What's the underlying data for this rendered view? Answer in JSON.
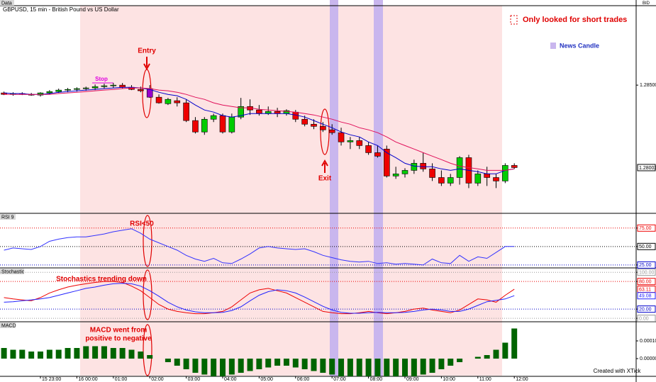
{
  "chart_data": [
    {
      "type": "candlestick",
      "title": "GBPUSD, 15 min - British Pound vs US Dollar",
      "panel_label": "Data",
      "axis_label": "BID",
      "categories": [
        null,
        null,
        null,
        null,
        "15 23:00",
        null,
        null,
        null,
        "16 00:00",
        null,
        null,
        null,
        "01:00",
        null,
        null,
        null,
        "02:00",
        null,
        null,
        null,
        "03:00",
        null,
        null,
        null,
        "04:00",
        null,
        null,
        null,
        "05:00",
        null,
        null,
        null,
        "06:00",
        null,
        null,
        null,
        "07:00",
        null,
        null,
        null,
        "08:00",
        null,
        null,
        null,
        "09:00",
        null,
        null,
        null,
        "10:00",
        null,
        null,
        null,
        "11:00",
        null,
        null,
        null,
        "12:00"
      ],
      "open": [
        1.28453,
        1.28444,
        1.28449,
        1.28444,
        1.2844,
        1.28453,
        1.28461,
        1.2847,
        1.28474,
        1.28479,
        1.28483,
        1.28491,
        1.28496,
        1.285,
        1.28487,
        1.28474,
        1.28479,
        1.28427,
        1.28388,
        1.28406,
        1.28393,
        1.28286,
        1.28217,
        1.28294,
        1.28316,
        1.28217,
        1.28307,
        1.28371,
        1.2835,
        1.28328,
        1.28341,
        1.28328,
        1.28337,
        1.28294,
        1.28264,
        1.28251,
        1.2823,
        1.28213,
        1.28157,
        1.28165,
        1.28135,
        1.28092,
        1.28114,
        1.27951,
        1.27964,
        1.27985,
        1.28028,
        1.27994,
        1.27942,
        1.27908,
        1.27942,
        1.28062,
        1.27908,
        1.27964,
        1.27942,
        1.27921,
        1.28015
      ],
      "high": [
        1.28461,
        1.28457,
        1.28457,
        1.28453,
        1.28457,
        1.2847,
        1.28479,
        1.28483,
        1.28487,
        1.28491,
        1.28504,
        1.28509,
        1.28513,
        1.28513,
        1.285,
        1.28491,
        1.285,
        1.28444,
        1.28423,
        1.28427,
        1.28414,
        1.28307,
        1.28307,
        1.28328,
        1.28328,
        1.28328,
        1.28423,
        1.28414,
        1.2838,
        1.28371,
        1.28363,
        1.28354,
        1.2835,
        1.28316,
        1.28294,
        1.28277,
        1.28264,
        1.28243,
        1.28187,
        1.28187,
        1.28157,
        1.28135,
        1.28135,
        1.28007,
        1.27998,
        1.2805,
        1.28092,
        1.28028,
        1.27985,
        1.27964,
        1.28071,
        1.28079,
        1.27985,
        1.28007,
        1.27964,
        1.28028,
        1.28028
      ],
      "low": [
        1.2844,
        1.28436,
        1.2844,
        1.28436,
        1.28431,
        1.28444,
        1.28453,
        1.28457,
        1.28461,
        1.28466,
        1.2847,
        1.28479,
        1.28483,
        1.28479,
        1.2847,
        1.28457,
        1.28423,
        1.28388,
        1.2838,
        1.28371,
        1.28277,
        1.28208,
        1.282,
        1.28277,
        1.28208,
        1.28208,
        1.28294,
        1.2832,
        1.28316,
        1.2832,
        1.28307,
        1.28316,
        1.28277,
        1.28251,
        1.28234,
        1.28217,
        1.282,
        1.28135,
        1.28114,
        1.28114,
        1.28079,
        1.28062,
        1.27942,
        1.27934,
        1.27942,
        1.27964,
        1.27977,
        1.27921,
        1.27891,
        1.27891,
        1.27899,
        1.27878,
        1.27891,
        1.27891,
        1.27878,
        1.27908,
        1.27994
      ],
      "close": [
        1.28444,
        1.28449,
        1.28444,
        1.2844,
        1.28453,
        1.28461,
        1.2847,
        1.28474,
        1.28479,
        1.28483,
        1.28491,
        1.28496,
        1.285,
        1.28487,
        1.28474,
        1.28466,
        1.28427,
        1.28393,
        1.28414,
        1.28393,
        1.28286,
        1.28217,
        1.28294,
        1.28316,
        1.28217,
        1.28307,
        1.28371,
        1.2835,
        1.28328,
        1.28341,
        1.28328,
        1.28346,
        1.28294,
        1.28264,
        1.28251,
        1.2823,
        1.28213,
        1.28157,
        1.28165,
        1.28135,
        1.28092,
        1.28071,
        1.27951,
        1.27964,
        1.27985,
        1.28028,
        1.27994,
        1.27942,
        1.27908,
        1.27942,
        1.28062,
        1.27908,
        1.27964,
        1.27942,
        1.27921,
        1.28015,
        1.28002
      ],
      "colors": [
        "#ee0000",
        "#00cc00",
        "#ee0000",
        "#ee0000",
        "#00cc00",
        "#00cc00",
        "#00cc00",
        "#00cc00",
        "#00cc00",
        "#00cc00",
        "#00cc00",
        "#00cc00",
        "#00cc00",
        "#ee0000",
        "#ee0000",
        "#ee0000",
        "#9900cc",
        "#ee0000",
        "#00cc00",
        "#ee0000",
        "#ee0000",
        "#ee0000",
        "#00cc00",
        "#00cc00",
        "#ee0000",
        "#00cc00",
        "#00cc00",
        "#ee0000",
        "#ee0000",
        "#00cc00",
        "#ee0000",
        "#00cc00",
        "#ee0000",
        "#ee0000",
        "#ee0000",
        "#ee0000",
        "#ee0000",
        "#ee0000",
        "#00cc00",
        "#ee0000",
        "#ee0000",
        "#ee0000",
        "#ee0000",
        "#00cc00",
        "#00cc00",
        "#00cc00",
        "#ee0000",
        "#ee0000",
        "#ee0000",
        "#00cc00",
        "#00cc00",
        "#ee0000",
        "#00cc00",
        "#ee0000",
        "#ee0000",
        "#00cc00",
        "#ee0000"
      ],
      "lines": [
        {
          "color": "#0000cc",
          "values": [
            1.28453,
            1.28449,
            1.28449,
            1.28444,
            1.28444,
            1.28449,
            1.28457,
            1.28461,
            1.28466,
            1.2847,
            1.28474,
            1.28479,
            1.28483,
            1.28487,
            1.28487,
            1.28483,
            1.28474,
            1.28457,
            1.28444,
            1.28436,
            1.28414,
            1.2838,
            1.2835,
            1.28337,
            1.28316,
            1.28307,
            1.28316,
            1.28328,
            1.28328,
            1.28328,
            1.28328,
            1.28328,
            1.2832,
            1.28307,
            1.28286,
            1.28264,
            1.28243,
            1.28217,
            1.282,
            1.28187,
            1.28157,
            1.28135,
            1.28092,
            1.28062,
            1.28028,
            1.28011,
            1.28007,
            1.28007,
            1.27994,
            1.27985,
            1.27994,
            1.27985,
            1.27977,
            1.27964,
            1.27964,
            1.27985,
            1.27994
          ]
        },
        {
          "color": "#e0105a",
          "values": [
            1.28444,
            1.28444,
            1.28444,
            1.28444,
            1.28444,
            1.28444,
            1.28449,
            1.28453,
            1.28457,
            1.28461,
            1.28466,
            1.2847,
            1.28474,
            1.28479,
            1.28483,
            1.28483,
            1.28479,
            1.2847,
            1.28466,
            1.28457,
            1.28444,
            1.28427,
            1.28414,
            1.28393,
            1.2838,
            1.28371,
            1.28363,
            1.28363,
            1.28354,
            1.2835,
            1.28346,
            1.28341,
            1.28337,
            1.28328,
            1.2832,
            1.28307,
            1.28294,
            1.28277,
            1.28264,
            1.28243,
            1.2823,
            1.28213,
            1.28187,
            1.28157,
            1.28135,
            1.28114,
            1.28092,
            1.28071,
            1.2805,
            1.28028,
            1.28011,
            1.28002,
            1.27994,
            1.27985,
            1.27985,
            1.27985,
            1.27994
          ]
        }
      ],
      "ylim": [
        1.2773,
        1.2898
      ],
      "yticks": [
        {
          "value": 1.285,
          "label": "1.28500"
        }
      ],
      "annotations": {
        "entry": "Entry",
        "exit": "Exit",
        "stop": "Stop"
      },
      "legend": [
        {
          "label": "Only looked for short trades",
          "color": "#ee0000"
        },
        {
          "label": "News Candle",
          "color": "#c9b6ee"
        }
      ]
    },
    {
      "type": "line",
      "label": "RSI 9",
      "annotation": "RSI<50",
      "series": [
        {
          "color": "#3333ff",
          "values": [
            45,
            48,
            47,
            46,
            50,
            57,
            60,
            62,
            63,
            63,
            65,
            67,
            70,
            72,
            74,
            68,
            60,
            55,
            50,
            45,
            38,
            33,
            30,
            34,
            28,
            27,
            33,
            40,
            48,
            50,
            48,
            47,
            46,
            47,
            43,
            38,
            35,
            32,
            30,
            29,
            30,
            27,
            28,
            26,
            27,
            26,
            25,
            33,
            28,
            27,
            38,
            30,
            36,
            34,
            42,
            50,
            50
          ]
        }
      ],
      "ylim": [
        22,
        94
      ],
      "yticks": [
        {
          "value": 75,
          "label": "75.00"
        },
        {
          "value": 50,
          "label": "50.00"
        },
        {
          "value": 25,
          "label": "25.00"
        }
      ],
      "grid_colors": [
        "#ee0000",
        "#000000",
        "#0000cc"
      ]
    },
    {
      "type": "line",
      "label": "Stochastic",
      "annotation": "Stochastics trending down",
      "series": [
        {
          "color": "#ee0000",
          "values": [
            45,
            42,
            40,
            38,
            45,
            55,
            62,
            68,
            72,
            75,
            78,
            80,
            80,
            78,
            70,
            60,
            45,
            30,
            20,
            15,
            12,
            10,
            10,
            12,
            15,
            25,
            40,
            55,
            62,
            65,
            60,
            55,
            45,
            35,
            25,
            15,
            12,
            10,
            10,
            12,
            15,
            12,
            10,
            12,
            15,
            20,
            22,
            18,
            15,
            12,
            18,
            30,
            42,
            40,
            35,
            50,
            63.11
          ]
        },
        {
          "color": "#2222ff",
          "values": [
            35,
            36,
            38,
            40,
            42,
            45,
            50,
            55,
            60,
            65,
            68,
            72,
            75,
            76,
            75,
            70,
            60,
            48,
            35,
            25,
            18,
            14,
            12,
            12,
            13,
            17,
            25,
            38,
            50,
            58,
            62,
            60,
            55,
            46,
            36,
            26,
            18,
            13,
            11,
            11,
            12,
            13,
            12,
            12,
            13,
            15,
            18,
            20,
            18,
            15,
            15,
            20,
            28,
            36,
            39,
            42,
            49.08
          ]
        }
      ],
      "ylim": [
        -6,
        108
      ],
      "yticks": [
        {
          "value": 100,
          "label": "100.00"
        },
        {
          "value": 80,
          "label": "80.00"
        },
        {
          "value": 20,
          "label": "20.00"
        },
        {
          "value": 0,
          "label": "0.00"
        }
      ],
      "grid_colors": [
        "#999999",
        "#ee0000",
        "#0000cc",
        "#999999"
      ]
    },
    {
      "type": "bar",
      "label": "MACD",
      "annotation": [
        "MACD went from",
        "positive to negative"
      ],
      "credit": "Created with XTick",
      "color": "#006400",
      "values": [
        6e-05,
        5e-05,
        5e-05,
        4e-05,
        4e-05,
        5e-05,
        5e-05,
        6e-05,
        6e-05,
        7e-05,
        7e-05,
        7e-05,
        6e-05,
        6e-05,
        5e-05,
        4e-05,
        2e-05,
        0,
        -2e-05,
        -4e-05,
        -6e-05,
        -8e-05,
        -9e-05,
        -0.0001,
        -0.0001,
        -9e-05,
        -8e-05,
        -7e-05,
        -6e-05,
        -5e-05,
        -4e-05,
        -4e-05,
        -5e-05,
        -6e-05,
        -7e-05,
        -8e-05,
        -9e-05,
        -0.0001,
        -0.0001,
        -0.0001,
        -0.0001,
        -0.0001,
        -0.0001,
        -0.0001,
        -0.0001,
        -0.0001,
        -9e-05,
        -8e-05,
        -6e-05,
        -4e-05,
        -2e-05,
        0,
        1e-05,
        2e-05,
        5e-05,
        9e-05,
        0.00017
      ],
      "ylim": [
        -9.6e-05,
        0.0002
      ],
      "yticks": [
        {
          "value": 0.0001,
          "label": "0.00010"
        },
        {
          "value": 0,
          "label": "0.00000"
        }
      ]
    }
  ]
}
